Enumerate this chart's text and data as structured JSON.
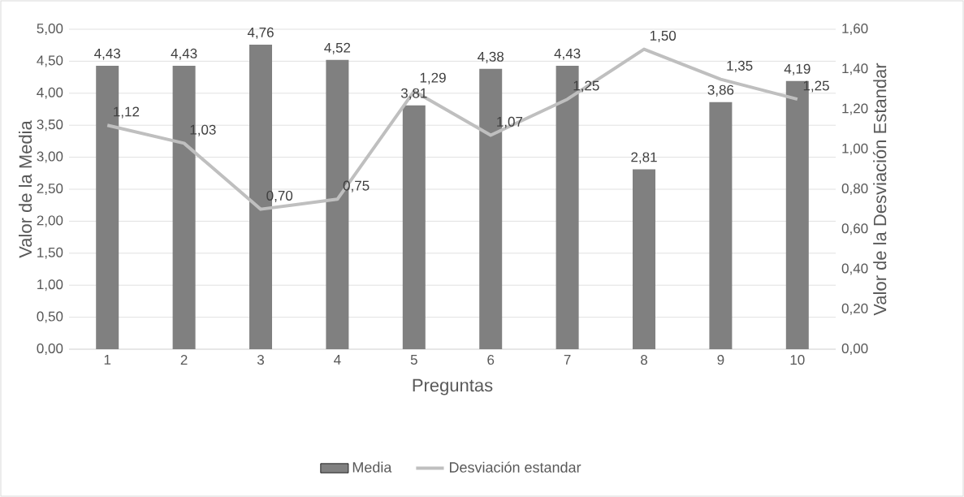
{
  "chart_data": {
    "type": "bar",
    "xlabel": "Preguntas",
    "ylabel": "Valor de la Media",
    "y2label": "Valor de la Desviación Estandar",
    "categories": [
      "1",
      "2",
      "3",
      "4",
      "5",
      "6",
      "7",
      "8",
      "9",
      "10"
    ],
    "series": [
      {
        "name": "Media",
        "color": "#808080",
        "values": [
          4.43,
          4.43,
          4.76,
          4.52,
          3.81,
          4.38,
          4.43,
          2.81,
          3.86,
          4.19
        ],
        "value_labels": [
          "4,43",
          "4,43",
          "4,76",
          "4,52",
          "3,81",
          "4,38",
          "4,43",
          "2,81",
          "3,86",
          "4,19"
        ]
      },
      {
        "name": "Desviación estandar",
        "type": "line",
        "axis": "y2",
        "color": "#bfbfbf",
        "values": [
          1.12,
          1.03,
          0.7,
          0.75,
          1.29,
          1.07,
          1.25,
          1.5,
          1.35,
          1.25
        ],
        "value_labels": [
          "1,12",
          "1,03",
          "0,70",
          "0,75",
          "1,29",
          "1,07",
          "1,25",
          "1,50",
          "1,35",
          "1,25"
        ]
      }
    ],
    "ylim": [
      0,
      5
    ],
    "yticks": [
      {
        "value": 0,
        "label": "0,00"
      },
      {
        "value": 0.5,
        "label": "0,50"
      },
      {
        "value": 1,
        "label": "1,00"
      },
      {
        "value": 1.5,
        "label": "1,50"
      },
      {
        "value": 2,
        "label": "2,00"
      },
      {
        "value": 2.5,
        "label": "2,50"
      },
      {
        "value": 3,
        "label": "3,00"
      },
      {
        "value": 3.5,
        "label": "3,50"
      },
      {
        "value": 4,
        "label": "4,00"
      },
      {
        "value": 4.5,
        "label": "4,50"
      },
      {
        "value": 5,
        "label": "5,00"
      }
    ],
    "y2lim": [
      0,
      1.6
    ],
    "y2ticks": [
      {
        "value": 0,
        "label": "0,00"
      },
      {
        "value": 0.2,
        "label": "0,20"
      },
      {
        "value": 0.4,
        "label": "0,40"
      },
      {
        "value": 0.6,
        "label": "0,60"
      },
      {
        "value": 0.8,
        "label": "0,80"
      },
      {
        "value": 1,
        "label": "1,00"
      },
      {
        "value": 1.2,
        "label": "1,20"
      },
      {
        "value": 1.4,
        "label": "1,40"
      },
      {
        "value": 1.6,
        "label": "1,60"
      }
    ],
    "grid": "y",
    "legend": "bottom"
  }
}
